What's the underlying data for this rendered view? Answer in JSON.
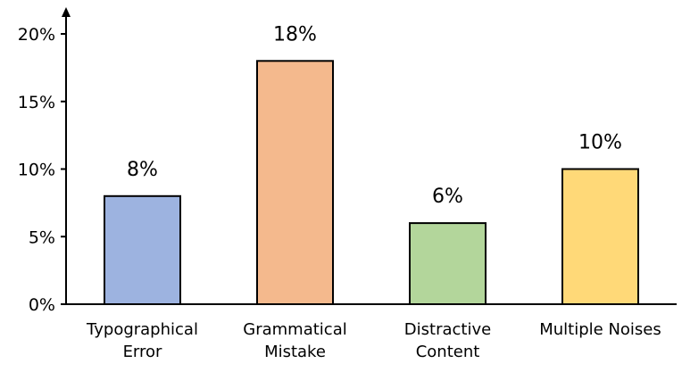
{
  "chart_data": {
    "type": "bar",
    "categories": [
      [
        "Typographical",
        "Error"
      ],
      [
        "Grammatical",
        "Mistake"
      ],
      [
        "Distractive",
        "Content"
      ],
      [
        "Multiple Noises"
      ]
    ],
    "values": [
      8,
      18,
      6,
      10
    ],
    "data_labels": [
      "8%",
      "18%",
      "6%",
      "10%"
    ],
    "bar_colors": [
      "#9db3e0",
      "#f4b98d",
      "#b3d69b",
      "#ffd978"
    ],
    "yticks": [
      0,
      5,
      10,
      15,
      20
    ],
    "ytick_labels": [
      "0%",
      "5%",
      "10%",
      "15%",
      "20%"
    ],
    "ylim": [
      0,
      20
    ],
    "grid": false,
    "legend": "none"
  }
}
